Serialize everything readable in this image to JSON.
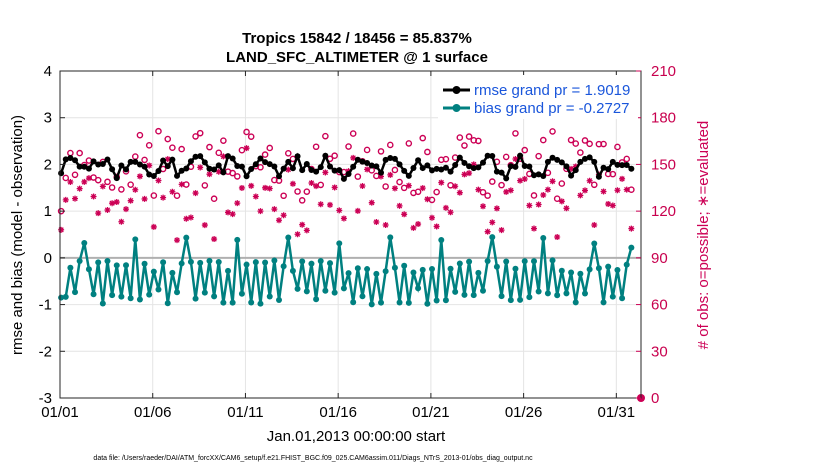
{
  "chart_data": {
    "type": "line",
    "title_line1": "Tropics 15842 / 18456 = 85.837%",
    "title_line2": "LAND_SFC_ALTIMETER @ 1 surface",
    "xlabel": "Jan.01,2013 00:00:00 start",
    "ylabel": "rmse and bias (model - observation)",
    "ylabel_right": "# of obs: o=possible; ∗=evaluated",
    "footer": "data file: /Users/raeder/DAI/ATM_forcXX/CAM6_setup/f.e21.FHIST_BGC.f09_025.CAM6assim.011/Diags_NTrS_2013-01/obs_diag_output.nc",
    "xlim": [
      0,
      31.33
    ],
    "ylim": [
      -3,
      4
    ],
    "ylim_right": [
      0,
      210
    ],
    "x_ticks": [
      {
        "v": 0,
        "label": "01/01"
      },
      {
        "v": 5,
        "label": "01/06"
      },
      {
        "v": 10,
        "label": "01/11"
      },
      {
        "v": 15,
        "label": "01/16"
      },
      {
        "v": 20,
        "label": "01/21"
      },
      {
        "v": 25,
        "label": "01/26"
      },
      {
        "v": 30,
        "label": "01/31"
      }
    ],
    "y_ticks": [
      {
        "v": -3,
        "label": "-3"
      },
      {
        "v": -2,
        "label": "-2"
      },
      {
        "v": -1,
        "label": "-1"
      },
      {
        "v": 0,
        "label": "0"
      },
      {
        "v": 1,
        "label": "1"
      },
      {
        "v": 2,
        "label": "2"
      },
      {
        "v": 3,
        "label": "3"
      },
      {
        "v": 4,
        "label": "4"
      }
    ],
    "y_ticks_right": [
      {
        "v": 0,
        "label": "0"
      },
      {
        "v": 30,
        "label": "30"
      },
      {
        "v": 60,
        "label": "60"
      },
      {
        "v": 90,
        "label": "90"
      },
      {
        "v": 120,
        "label": "120"
      },
      {
        "v": 150,
        "label": "150"
      },
      {
        "v": 180,
        "label": "180"
      },
      {
        "v": 210,
        "label": "210"
      }
    ],
    "series": [
      {
        "name": "rmse grand pr = 1.9019",
        "color": "#000000",
        "axis": "left",
        "generator": "rmse"
      },
      {
        "name": "bias grand pr = -0.2727",
        "color": "#008080",
        "axis": "left",
        "generator": "bias"
      },
      {
        "name": "possible",
        "color": "#cc0055",
        "axis": "right",
        "marker": "o",
        "generator": "possible"
      },
      {
        "name": "evaluated",
        "color": "#cc0055",
        "axis": "right",
        "marker": "*",
        "generator": "evaluated"
      }
    ],
    "n_points": 124,
    "dt_days": 0.25,
    "colors": {
      "rmse": "#000000",
      "bias": "#008080",
      "obs": "#cc0055",
      "legend_text": "#1a56db",
      "zero_line": "#b0b0b0"
    }
  }
}
